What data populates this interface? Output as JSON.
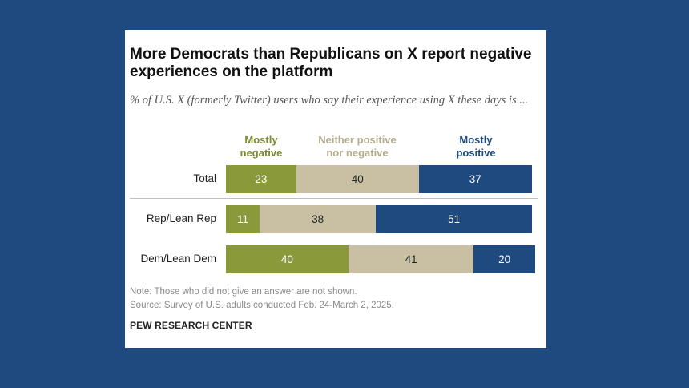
{
  "chart_data": {
    "type": "bar",
    "orientation": "horizontal",
    "stacked": true,
    "title": "More Democrats than Republicans on X report negative experiences on the platform",
    "subtitle": "% of U.S. X (formerly Twitter) users who say their experience using X these days is ...",
    "categories": [
      "Total",
      "Rep/Lean Rep",
      "Dem/Lean Dem"
    ],
    "series": [
      {
        "name": "Mostly negative",
        "values": [
          23,
          11,
          40
        ],
        "color": "#8a9a3b"
      },
      {
        "name": "Neither positive nor negative",
        "values": [
          40,
          38,
          41
        ],
        "color": "#c9c0a4"
      },
      {
        "name": "Mostly positive",
        "values": [
          37,
          51,
          20
        ],
        "color": "#1f4a7f"
      }
    ],
    "legend_placement": "top",
    "xlim": [
      0,
      100
    ],
    "grid": false,
    "note": "Note: Those who did not give an answer are not shown.",
    "source": "Source: Survey of U.S. adults conducted Feb. 24-March 2, 2025.",
    "brand": "PEW RESEARCH CENTER"
  },
  "legend_labels": {
    "negative": [
      "Mostly",
      "negative"
    ],
    "neither": [
      "Neither positive",
      "nor negative"
    ],
    "positive": [
      "Mostly",
      "positive"
    ]
  },
  "label_colors": {
    "negative": "#7a8a2e",
    "neither": "#b5ad8f",
    "positive": "#1f4a7f"
  },
  "value_text_colors": [
    "#ffffff",
    "#222222",
    "#ffffff"
  ]
}
